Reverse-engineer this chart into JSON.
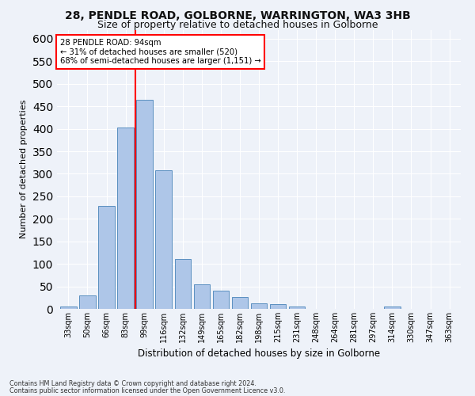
{
  "title1": "28, PENDLE ROAD, GOLBORNE, WARRINGTON, WA3 3HB",
  "title2": "Size of property relative to detached houses in Golborne",
  "xlabel": "Distribution of detached houses by size in Golborne",
  "ylabel": "Number of detached properties",
  "categories": [
    "33sqm",
    "50sqm",
    "66sqm",
    "83sqm",
    "99sqm",
    "116sqm",
    "132sqm",
    "149sqm",
    "165sqm",
    "182sqm",
    "198sqm",
    "215sqm",
    "231sqm",
    "248sqm",
    "264sqm",
    "281sqm",
    "297sqm",
    "314sqm",
    "330sqm",
    "347sqm",
    "363sqm"
  ],
  "values": [
    5,
    30,
    228,
    402,
    465,
    307,
    111,
    54,
    40,
    26,
    13,
    11,
    5,
    0,
    0,
    0,
    0,
    5,
    0,
    0,
    0
  ],
  "bar_color": "#aec6e8",
  "bar_edge_color": "#5a8fc0",
  "redline_x": 3.5,
  "annotation_line1": "28 PENDLE ROAD: 94sqm",
  "annotation_line2": "← 31% of detached houses are smaller (520)",
  "annotation_line3": "68% of semi-detached houses are larger (1,151) →",
  "ylim": [
    0,
    620
  ],
  "yticks": [
    0,
    50,
    100,
    150,
    200,
    250,
    300,
    350,
    400,
    450,
    500,
    550,
    600
  ],
  "footnote1": "Contains HM Land Registry data © Crown copyright and database right 2024.",
  "footnote2": "Contains public sector information licensed under the Open Government Licence v3.0.",
  "bg_color": "#eef2f9",
  "grid_color": "#ffffff",
  "title1_fontsize": 10,
  "title2_fontsize": 9
}
